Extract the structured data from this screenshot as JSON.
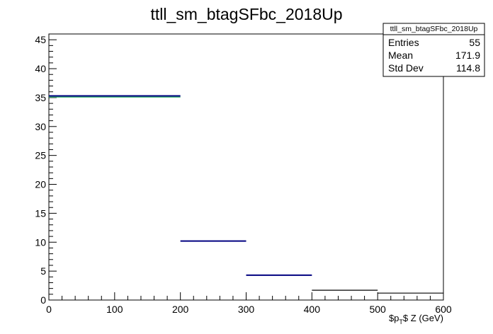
{
  "chart_data": {
    "type": "histogram",
    "title": "ttll_sm_btagSFbc_2018Up",
    "xlabel": "$p_T$ Z (GeV)",
    "ylabel": "",
    "xlim": [
      0,
      600
    ],
    "ylim": [
      0,
      46
    ],
    "x_ticks": [
      0,
      100,
      200,
      300,
      400,
      500,
      600
    ],
    "y_ticks": [
      0,
      5,
      10,
      15,
      20,
      25,
      30,
      35,
      40,
      45
    ],
    "grid": false,
    "legend": "none",
    "bins": [
      {
        "x0": 0,
        "x1": 200,
        "nominal": 35.3,
        "variation": 35.1
      },
      {
        "x0": 200,
        "x1": 300,
        "nominal": 10.2,
        "variation": 10.2
      },
      {
        "x0": 300,
        "x1": 400,
        "nominal": 4.3,
        "variation": 4.3
      },
      {
        "x0": 400,
        "x1": 500,
        "nominal": 1.7,
        "variation": 1.7
      },
      {
        "x0": 500,
        "x1": 600,
        "nominal": 1.2,
        "variation": 1.2
      }
    ],
    "stats_box": {
      "title": "ttll_sm_btagSFbc_2018Up",
      "rows": [
        {
          "label": "Entries",
          "value": "55"
        },
        {
          "label": "Mean",
          "value": "171.9"
        },
        {
          "label": "Std Dev",
          "value": "114.8"
        }
      ]
    },
    "colors": {
      "nominal": "#000080",
      "variation": "#3cb371",
      "neutral": "#000000"
    }
  }
}
